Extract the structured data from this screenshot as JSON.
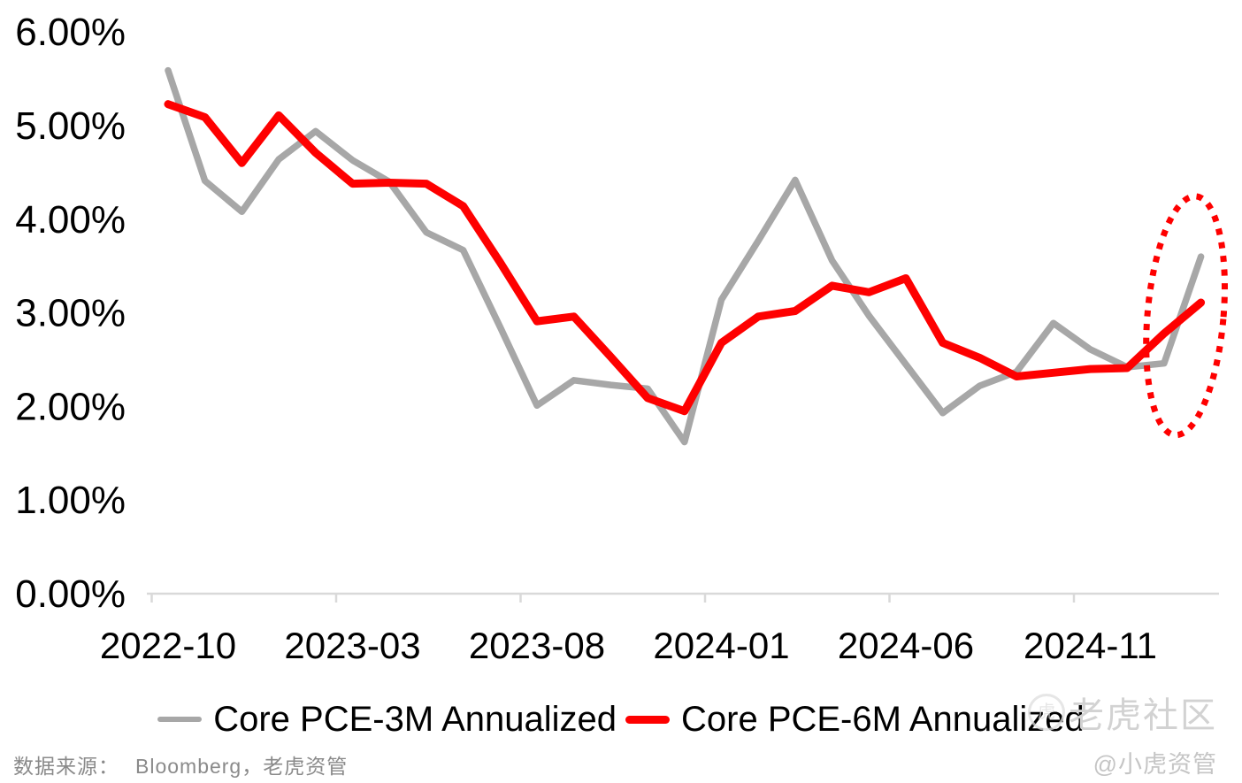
{
  "chart_data": {
    "type": "line",
    "title": "",
    "categories": [
      "2022-10",
      "2022-11",
      "2022-12",
      "2023-01",
      "2023-02",
      "2023-03",
      "2023-04",
      "2023-05",
      "2023-06",
      "2023-07",
      "2023-08",
      "2023-09",
      "2023-10",
      "2023-11",
      "2023-12",
      "2024-01",
      "2024-02",
      "2024-03",
      "2024-04",
      "2024-05",
      "2024-06",
      "2024-07",
      "2024-08",
      "2024-09",
      "2024-10",
      "2024-11",
      "2024-12",
      "2025-01",
      "2025-02"
    ],
    "series": [
      {
        "name": "Core PCE-3M Annualized",
        "color": "#a7a7a7",
        "stroke_width": 7.5,
        "values": [
          5.59,
          4.41,
          4.08,
          4.64,
          4.94,
          4.63,
          4.4,
          3.86,
          3.67,
          2.85,
          2.01,
          2.28,
          2.23,
          2.19,
          1.62,
          3.14,
          3.77,
          4.42,
          3.56,
          2.97,
          2.45,
          1.93,
          2.22,
          2.37,
          2.89,
          2.61,
          2.42,
          2.46,
          3.6
        ]
      },
      {
        "name": "Core PCE-6M Annualized",
        "color": "#fe0000",
        "stroke_width": 9,
        "values": [
          5.23,
          5.09,
          4.6,
          5.11,
          4.71,
          4.38,
          4.39,
          4.38,
          4.14,
          3.54,
          2.91,
          2.96,
          2.53,
          2.09,
          1.95,
          2.68,
          2.96,
          3.02,
          3.29,
          3.22,
          3.37,
          2.68,
          2.52,
          2.32,
          2.36,
          2.4,
          2.41,
          2.78,
          3.11
        ]
      }
    ],
    "x_ticks": [
      {
        "index": 0,
        "label": "2022-10"
      },
      {
        "index": 5,
        "label": "2023-03"
      },
      {
        "index": 10,
        "label": "2023-08"
      },
      {
        "index": 15,
        "label": "2024-01"
      },
      {
        "index": 20,
        "label": "2024-06"
      },
      {
        "index": 25,
        "label": "2024-11"
      }
    ],
    "y_axis": {
      "min": 0,
      "max": 6,
      "step": 1,
      "decimals": 2,
      "suffix": "%"
    },
    "grid": "off",
    "legend_position": "bottom",
    "annotation_ellipse": {
      "center_index": 27.58,
      "center_value": 2.97,
      "radius_months": 1.03,
      "radius_value": 1.28,
      "rotation_deg": 5,
      "color": "#fe0000",
      "style": "dotted"
    },
    "axis_color": "#d9d9d9",
    "label_color": "#000000"
  },
  "footer": {
    "source_label": "数据来源：",
    "source_value": "Bloomberg，老虎资管"
  },
  "watermark": {
    "logo": "tiger-circle-logo",
    "brand": "老虎社区",
    "handle": "@小虎资管"
  }
}
